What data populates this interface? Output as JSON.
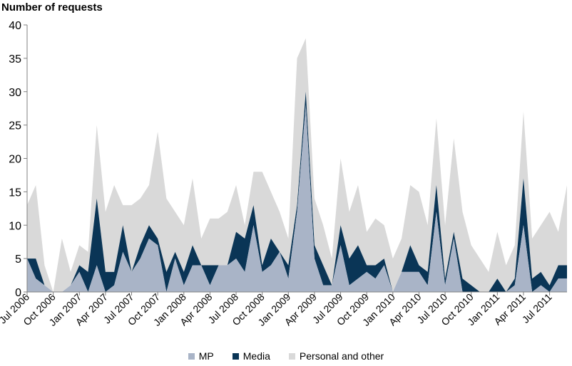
{
  "chart_data": {
    "type": "area",
    "stacked": true,
    "title": "Number of requests",
    "xlabel": "",
    "ylabel": "",
    "ylim": [
      0,
      40
    ],
    "yticks": [
      0,
      5,
      10,
      15,
      20,
      25,
      30,
      35,
      40
    ],
    "grid": false,
    "legend_position": "bottom",
    "x": [
      "Jul 2006",
      "Aug 2006",
      "Sep 2006",
      "Oct 2006",
      "Nov 2006",
      "Dec 2006",
      "Jan 2007",
      "Feb 2007",
      "Mar 2007",
      "Apr 2007",
      "May 2007",
      "Jun 2007",
      "Jul 2007",
      "Aug 2007",
      "Sep 2007",
      "Oct 2007",
      "Nov 2007",
      "Dec 2007",
      "Jan 2008",
      "Feb 2008",
      "Mar 2008",
      "Apr 2008",
      "May 2008",
      "Jun 2008",
      "Jul 2008",
      "Aug 2008",
      "Sep 2008",
      "Oct 2008",
      "Nov 2008",
      "Dec 2008",
      "Jan 2009",
      "Feb 2009",
      "Mar 2009",
      "Apr 2009",
      "May 2009",
      "Jun 2009",
      "Jul 2009",
      "Aug 2009",
      "Sep 2009",
      "Oct 2009",
      "Nov 2009",
      "Dec 2009",
      "Jan 2010",
      "Feb 2010",
      "Mar 2010",
      "Apr 2010",
      "May 2010",
      "Jun 2010",
      "Jul 2010",
      "Aug 2010",
      "Sep 2010",
      "Oct 2010",
      "Nov 2010",
      "Dec 2010",
      "Jan 2011",
      "Feb 2011",
      "Mar 2011",
      "Apr 2011",
      "May 2011",
      "Jun 2011",
      "Jul 2011",
      "Aug 2011",
      "Sep 2011"
    ],
    "tick_labels": [
      "Jul 2006",
      "Oct 2006",
      "Jan 2007",
      "Apr 2007",
      "Jul 2007",
      "Oct 2007",
      "Jan 2008",
      "Apr 2008",
      "Jul 2008",
      "Oct 2008",
      "Jan 2009",
      "Apr 2009",
      "Jul 2009",
      "Oct 2009",
      "Jan 2010",
      "Apr 2010",
      "Jul 2010",
      "Oct 2010",
      "Jan 2011",
      "Apr 2011",
      "Jul 2011"
    ],
    "series": [
      {
        "name": "MP",
        "color": "#a9b4c7",
        "values": [
          5,
          2,
          1,
          0,
          0,
          1,
          3,
          0,
          4,
          0,
          1,
          6,
          3,
          5,
          8,
          7,
          0,
          5,
          1,
          4,
          4,
          1,
          4,
          4,
          5,
          3,
          10,
          3,
          4,
          6,
          2,
          12,
          28,
          5,
          1,
          1,
          7,
          1,
          2,
          3,
          2,
          4,
          0,
          3,
          3,
          3,
          1,
          12,
          1,
          8,
          0,
          0,
          0,
          0,
          0,
          0,
          1,
          10,
          0,
          1,
          0,
          2,
          2
        ]
      },
      {
        "name": "Media",
        "color": "#0a3556",
        "values": [
          0,
          3,
          0,
          0,
          0,
          0,
          1,
          3,
          10,
          3,
          2,
          4,
          0,
          2,
          2,
          1,
          3,
          1,
          2,
          3,
          0,
          3,
          0,
          0,
          4,
          5,
          3,
          1,
          4,
          0,
          2,
          1,
          2,
          2,
          3,
          0,
          3,
          4,
          5,
          1,
          2,
          1,
          0,
          0,
          4,
          1,
          2,
          4,
          1,
          1,
          2,
          1,
          0,
          0,
          2,
          0,
          1,
          7,
          2,
          2,
          1,
          2,
          2
        ]
      },
      {
        "name": "Personal and other",
        "color": "#d9d9d9",
        "values": [
          8,
          11,
          3,
          0,
          8,
          2,
          3,
          3,
          11,
          9,
          13,
          3,
          10,
          7,
          6,
          16,
          11,
          6,
          7,
          10,
          4,
          7,
          7,
          8,
          7,
          2,
          5,
          14,
          7,
          6,
          4,
          22,
          8,
          7,
          6,
          4,
          10,
          7,
          9,
          5,
          7,
          5,
          5,
          5,
          9,
          11,
          7,
          10,
          8,
          14,
          10,
          6,
          5,
          3,
          7,
          4,
          5,
          10,
          6,
          7,
          11,
          5,
          12
        ]
      }
    ]
  }
}
